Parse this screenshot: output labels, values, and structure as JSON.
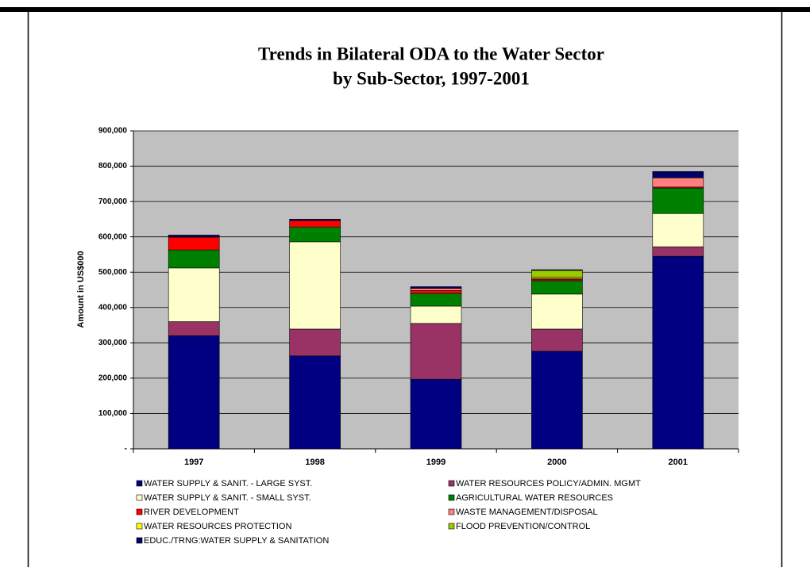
{
  "chart_data": {
    "type": "stacked_bar",
    "title": "Trends in Bilateral ODA to the Water Sector",
    "subtitle": "by Sub-Sector, 1997-2001",
    "y_label": "Amount in US$000",
    "categories": [
      "1997",
      "1998",
      "1999",
      "2000",
      "2001"
    ],
    "series": [
      {
        "name": "WATER SUPPLY & SANIT. - LARGE SYST.",
        "color": "#000080",
        "values": [
          320000,
          263000,
          197000,
          276000,
          545000
        ]
      },
      {
        "name": "WATER RESOURCES POLICY/ADMIN. MGMT",
        "color": "#993366",
        "values": [
          40000,
          76000,
          158000,
          63000,
          27000
        ]
      },
      {
        "name": "WATER SUPPLY & SANIT. - SMALL SYST.",
        "color": "#ffffcc",
        "values": [
          152000,
          247000,
          49000,
          99000,
          94000
        ]
      },
      {
        "name": "AGRICULTURAL WATER RESOURCES",
        "color": "#008000",
        "values": [
          51000,
          42000,
          36000,
          38000,
          72000
        ]
      },
      {
        "name": "RIVER DEVELOPMENT",
        "color": "#ff0000",
        "values": [
          36000,
          18000,
          8000,
          4000,
          3000
        ]
      },
      {
        "name": "WASTE MANAGEMENT/DISPOSAL",
        "color": "#ff8080",
        "values": [
          0,
          0,
          6000,
          2000,
          26000
        ]
      },
      {
        "name": "WATER RESOURCES PROTECTION",
        "color": "#ffff00",
        "values": [
          0,
          0,
          0,
          4000,
          0
        ]
      },
      {
        "name": "FLOOD PREVENTION/CONTROL",
        "color": "#99cc00",
        "values": [
          0,
          0,
          0,
          19000,
          0
        ]
      },
      {
        "name": "EDUC./TRNG:WATER SUPPLY & SANITATION",
        "color": "#000066",
        "values": [
          6000,
          4000,
          5000,
          2000,
          18000
        ]
      }
    ],
    "ylim": [
      0,
      900000
    ],
    "yticks": [
      {
        "value": 0,
        "label": "-"
      },
      {
        "value": 100000,
        "label": "100,000"
      },
      {
        "value": 200000,
        "label": "200,000"
      },
      {
        "value": 300000,
        "label": "300,000"
      },
      {
        "value": 400000,
        "label": "400,000"
      },
      {
        "value": 500000,
        "label": "500,000"
      },
      {
        "value": 600000,
        "label": "600,000"
      },
      {
        "value": 700000,
        "label": "700,000"
      },
      {
        "value": 800000,
        "label": "800,000"
      },
      {
        "value": 900000,
        "label": "900,000"
      }
    ],
    "grid": true,
    "plot_background": "#c0c0c0"
  }
}
